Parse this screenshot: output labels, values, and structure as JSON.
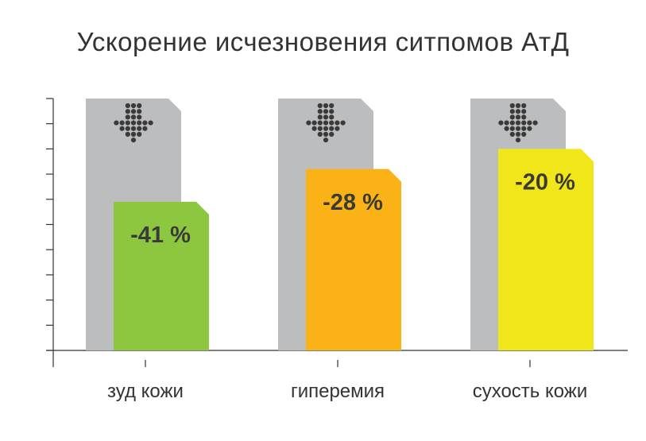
{
  "chart_data": {
    "type": "bar",
    "title": "Ускорение исчезновения ситпомов АтД",
    "categories": [
      "зуд кожи",
      "гиперемия",
      "сухость кожи"
    ],
    "series": [
      {
        "values": [
          100,
          100,
          100
        ],
        "color": "#bcbdbf"
      },
      {
        "values": [
          59,
          72,
          80
        ],
        "colors": [
          "#8dc63f",
          "#fbb216",
          "#f1e619"
        ]
      }
    ],
    "data_labels": [
      "-41 %",
      "-28 %",
      "-20 %"
    ],
    "ylim": [
      0,
      100
    ],
    "y_ticks": 11,
    "grid": false,
    "icon": "arrow-down-dots-icon"
  }
}
